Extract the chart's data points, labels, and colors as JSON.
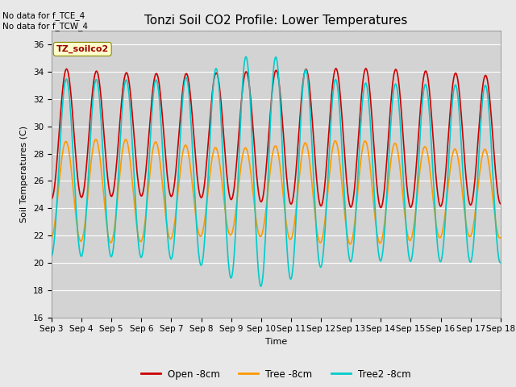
{
  "title": "Tonzi Soil CO2 Profile: Lower Temperatures",
  "xlabel": "Time",
  "ylabel": "Soil Temperatures (C)",
  "ylim": [
    16,
    37
  ],
  "yticks": [
    16,
    18,
    20,
    22,
    24,
    26,
    28,
    30,
    32,
    34,
    36
  ],
  "xtick_labels": [
    "Sep 3",
    "Sep 4",
    "Sep 5",
    "Sep 6",
    "Sep 7",
    "Sep 8",
    "Sep 9",
    "Sep 10",
    "Sep 11",
    "Sep 12",
    "Sep 13",
    "Sep 14",
    "Sep 15",
    "Sep 16",
    "Sep 17",
    "Sep 18"
  ],
  "bg_color": "#e8e8e8",
  "plot_bg_color": "#d3d3d3",
  "line_colors": {
    "open": "#cc0000",
    "tree": "#ff9900",
    "tree2": "#00cccc"
  },
  "line_widths": {
    "open": 1.2,
    "tree": 1.2,
    "tree2": 1.2
  },
  "legend_labels": [
    "Open -8cm",
    "Tree -8cm",
    "Tree2 -8cm"
  ],
  "annotation_text": "No data for f_TCE_4\nNo data for f_TCW_4",
  "legend_box_color": "#ffffcc",
  "legend_box_text": "TZ_soilco2",
  "title_fontsize": 11,
  "axis_fontsize": 8,
  "tick_fontsize": 7.5
}
